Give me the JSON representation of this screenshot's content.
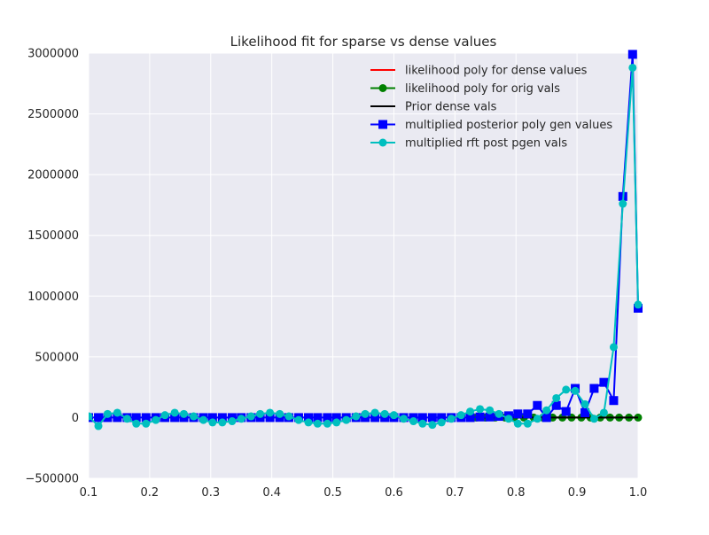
{
  "chart_data": {
    "type": "line",
    "title": "Likelihood fit for sparse vs dense values",
    "xlabel": "",
    "ylabel": "",
    "xlim": [
      0.1,
      1.0
    ],
    "ylim": [
      -500000,
      3000000
    ],
    "x_ticks": [
      0.1,
      0.2,
      0.3,
      0.4,
      0.5,
      0.6,
      0.7,
      0.8,
      0.9,
      1.0
    ],
    "x_tick_labels": [
      "0.1",
      "0.2",
      "0.3",
      "0.4",
      "0.5",
      "0.6",
      "0.7",
      "0.8",
      "0.9",
      "1.0"
    ],
    "y_ticks": [
      -500000,
      0,
      500000,
      1000000,
      1500000,
      2000000,
      2500000,
      3000000
    ],
    "y_tick_labels": [
      "−500000",
      "0",
      "500000",
      "1000000",
      "1500000",
      "2000000",
      "2500000",
      "3000000"
    ],
    "grid": true,
    "legend_position": "top-right",
    "background": "#eaeaf2",
    "series": [
      {
        "name": "likelihood poly for dense values",
        "color": "#ff0000",
        "marker": "none",
        "x": [
          0.735,
          1.0
        ],
        "y": [
          0,
          0
        ]
      },
      {
        "name": "likelihood poly for orig vals",
        "color": "#008000",
        "marker": "circle",
        "x": [
          0.735,
          0.75,
          0.766,
          0.782,
          0.797,
          0.813,
          0.829,
          0.844,
          0.86,
          0.876,
          0.891,
          0.907,
          0.922,
          0.938,
          0.954,
          0.969,
          0.985,
          1.0
        ],
        "y": [
          0,
          0,
          0,
          0,
          0,
          0,
          0,
          0,
          0,
          0,
          0,
          0,
          0,
          0,
          0,
          0,
          0,
          0
        ]
      },
      {
        "name": "Prior dense vals",
        "color": "#000000",
        "marker": "none",
        "x": [
          0.735,
          1.0
        ],
        "y": [
          0,
          0
        ]
      },
      {
        "name": "multiplied posterior poly gen values",
        "color": "#0000ff",
        "marker": "square",
        "x": [
          0.1,
          0.116,
          0.131,
          0.147,
          0.163,
          0.178,
          0.194,
          0.21,
          0.225,
          0.241,
          0.256,
          0.272,
          0.288,
          0.303,
          0.319,
          0.335,
          0.35,
          0.366,
          0.381,
          0.397,
          0.413,
          0.428,
          0.444,
          0.46,
          0.475,
          0.491,
          0.506,
          0.522,
          0.538,
          0.553,
          0.569,
          0.585,
          0.6,
          0.616,
          0.632,
          0.647,
          0.663,
          0.678,
          0.694,
          0.71,
          0.725,
          0.741,
          0.757,
          0.772,
          0.788,
          0.803,
          0.819,
          0.835,
          0.85,
          0.866,
          0.882,
          0.897,
          0.913,
          0.928,
          0.944,
          0.96,
          0.975,
          0.991,
          1.0
        ],
        "y": [
          0,
          0,
          0,
          0,
          0,
          0,
          0,
          0,
          0,
          0,
          0,
          0,
          0,
          0,
          0,
          0,
          0,
          0,
          0,
          0,
          0,
          0,
          0,
          0,
          0,
          0,
          0,
          0,
          0,
          0,
          0,
          0,
          0,
          0,
          0,
          0,
          0,
          0,
          0,
          0,
          0,
          5000,
          5000,
          10000,
          15000,
          30000,
          30000,
          100000,
          0,
          100000,
          50000,
          240000,
          40000,
          240000,
          290000,
          140000,
          1820000,
          2990000,
          900000
        ]
      },
      {
        "name": "multiplied rft post pgen vals",
        "color": "#00bfbf",
        "marker": "circle",
        "x": [
          0.1,
          0.116,
          0.131,
          0.147,
          0.163,
          0.178,
          0.194,
          0.21,
          0.225,
          0.241,
          0.256,
          0.272,
          0.288,
          0.303,
          0.319,
          0.335,
          0.35,
          0.366,
          0.381,
          0.397,
          0.413,
          0.428,
          0.444,
          0.46,
          0.475,
          0.491,
          0.506,
          0.522,
          0.538,
          0.553,
          0.569,
          0.585,
          0.6,
          0.616,
          0.632,
          0.647,
          0.663,
          0.678,
          0.694,
          0.71,
          0.725,
          0.741,
          0.757,
          0.772,
          0.788,
          0.803,
          0.819,
          0.835,
          0.85,
          0.866,
          0.882,
          0.897,
          0.913,
          0.928,
          0.944,
          0.96,
          0.975,
          0.991,
          1.0
        ],
        "y": [
          10000,
          -70000,
          30000,
          40000,
          -10000,
          -50000,
          -50000,
          -20000,
          20000,
          40000,
          30000,
          10000,
          -20000,
          -40000,
          -40000,
          -30000,
          -10000,
          10000,
          30000,
          40000,
          30000,
          10000,
          -20000,
          -40000,
          -50000,
          -50000,
          -40000,
          -20000,
          10000,
          30000,
          40000,
          30000,
          20000,
          -10000,
          -30000,
          -50000,
          -60000,
          -40000,
          -10000,
          20000,
          50000,
          70000,
          60000,
          30000,
          -10000,
          -50000,
          -50000,
          -10000,
          60000,
          160000,
          230000,
          220000,
          110000,
          -10000,
          40000,
          580000,
          1760000,
          2880000,
          930000
        ]
      }
    ]
  }
}
